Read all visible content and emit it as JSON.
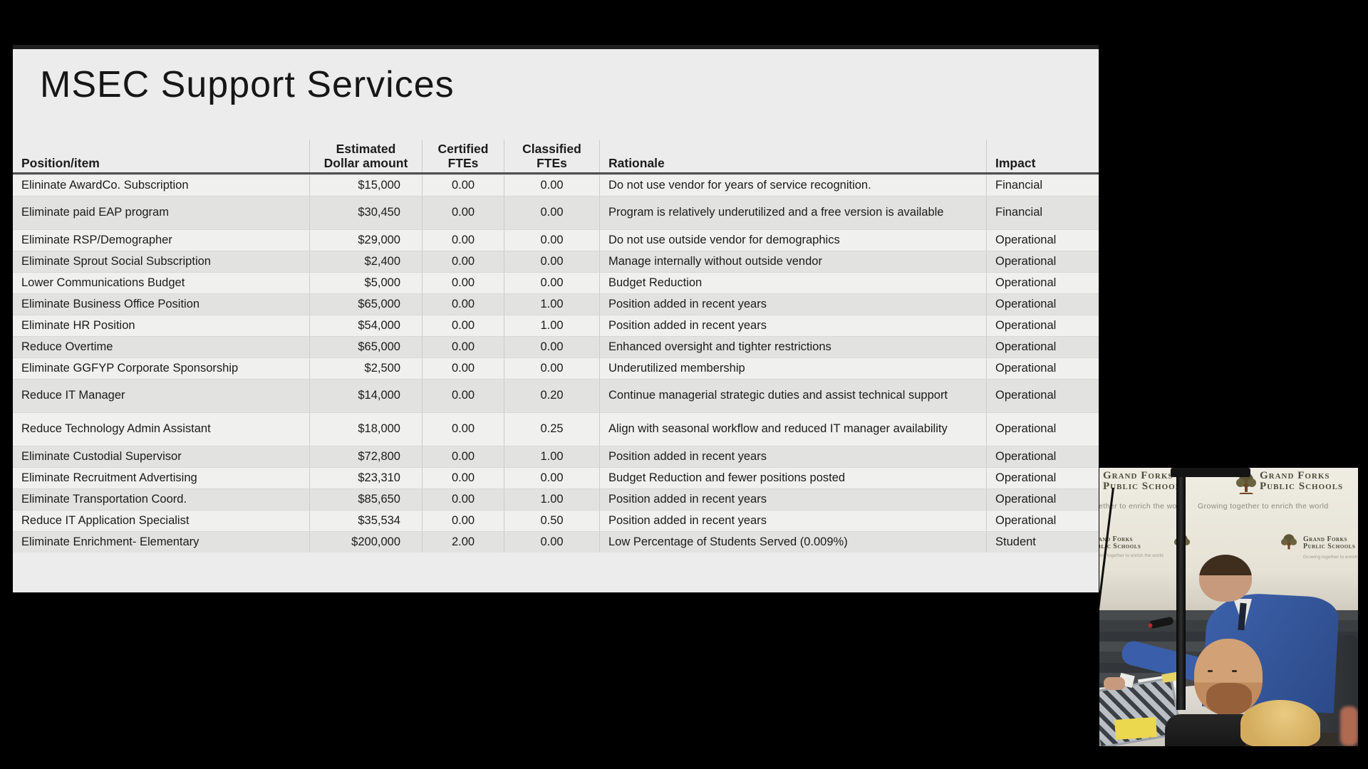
{
  "slide": {
    "title": "MSEC Support Services",
    "table": {
      "headers": {
        "position": "Position/item",
        "amount_line1": "Estimated",
        "amount_line2": "Dollar amount",
        "certified_line1": "Certified",
        "certified_line2": "FTEs",
        "classified_line1": "Classified",
        "classified_line2": "FTEs",
        "rationale": "Rationale",
        "impact": "Impact"
      },
      "rows": [
        {
          "position": "Elininate AwardCo. Subscription",
          "amount": "$15,000",
          "certified": "0.00",
          "classified": "0.00",
          "rationale": "Do not use vendor for years of service recognition.",
          "impact": "Financial"
        },
        {
          "position": "Eliminate paid EAP program",
          "amount": "$30,450",
          "certified": "0.00",
          "classified": "0.00",
          "rationale": "Program is relatively underutilized and a free version is available",
          "impact": "Financial"
        },
        {
          "position": "Eliminate RSP/Demographer",
          "amount": "$29,000",
          "certified": "0.00",
          "classified": "0.00",
          "rationale": "Do not use outside vendor for demographics",
          "impact": "Operational"
        },
        {
          "position": "Eliminate Sprout Social Subscription",
          "amount": "$2,400",
          "certified": "0.00",
          "classified": "0.00",
          "rationale": "Manage internally without outside vendor",
          "impact": "Operational"
        },
        {
          "position": "Lower Communications Budget",
          "amount": "$5,000",
          "certified": "0.00",
          "classified": "0.00",
          "rationale": "Budget Reduction",
          "impact": "Operational"
        },
        {
          "position": "Eliminate Business Office Position",
          "amount": "$65,000",
          "certified": "0.00",
          "classified": "1.00",
          "rationale": "Position added in recent years",
          "impact": "Operational"
        },
        {
          "position": "Eliminate HR Position",
          "amount": "$54,000",
          "certified": "0.00",
          "classified": "1.00",
          "rationale": "Position added in recent years",
          "impact": "Operational"
        },
        {
          "position": "Reduce Overtime",
          "amount": "$65,000",
          "certified": "0.00",
          "classified": "0.00",
          "rationale": "Enhanced oversight and tighter restrictions",
          "impact": "Operational"
        },
        {
          "position": "Eliminate GGFYP Corporate Sponsorship",
          "amount": "$2,500",
          "certified": "0.00",
          "classified": "0.00",
          "rationale": "Underutilized membership",
          "impact": "Operational"
        },
        {
          "position": "Reduce IT Manager",
          "amount": "$14,000",
          "certified": "0.00",
          "classified": "0.20",
          "rationale": "Continue managerial strategic duties and assist technical support",
          "impact": "Operational"
        },
        {
          "position": "Reduce Technology Admin Assistant",
          "amount": "$18,000",
          "certified": "0.00",
          "classified": "0.25",
          "rationale": "Align with seasonal workflow and reduced IT manager availability",
          "impact": "Operational"
        },
        {
          "position": "Eliminate Custodial Supervisor",
          "amount": "$72,800",
          "certified": "0.00",
          "classified": "1.00",
          "rationale": "Position added in recent years",
          "impact": "Operational"
        },
        {
          "position": "Eliminate Recruitment Advertising",
          "amount": "$23,310",
          "certified": "0.00",
          "classified": "0.00",
          "rationale": "Budget Reduction and fewer positions posted",
          "impact": "Operational"
        },
        {
          "position": "Eliminate Transportation Coord.",
          "amount": "$85,650",
          "certified": "0.00",
          "classified": "1.00",
          "rationale": "Position added in recent years",
          "impact": "Operational"
        },
        {
          "position": "Reduce IT Application Specialist",
          "amount": "$35,534",
          "certified": "0.00",
          "classified": "0.50",
          "rationale": "Position added in recent years",
          "impact": "Operational"
        },
        {
          "position": "Eliminate Enrichment- Elementary",
          "amount": "$200,000",
          "certified": "2.00",
          "classified": "0.00",
          "rationale": "Low Percentage of Students Served (0.009%)",
          "impact": "Student"
        }
      ]
    }
  },
  "webcam": {
    "banner": {
      "logo_line1": "Grand Forks",
      "logo_line2": "Public Schools",
      "tagline": "Growing together to enrich the world"
    }
  },
  "colors": {
    "page_bg": "#000000",
    "slide_bg": "#ececec",
    "row_light": "#f0f0ee",
    "row_dark": "#e2e3e1",
    "header_border": "#4f4f4f",
    "text": "#1b1b1b",
    "banner_bg": "#e9e5da",
    "logo_olive": "#4b4c39",
    "suit_blue": "#3a5ea9",
    "wall_grey": "#3a3e41",
    "sticky_yellow": "#ecd84f"
  }
}
